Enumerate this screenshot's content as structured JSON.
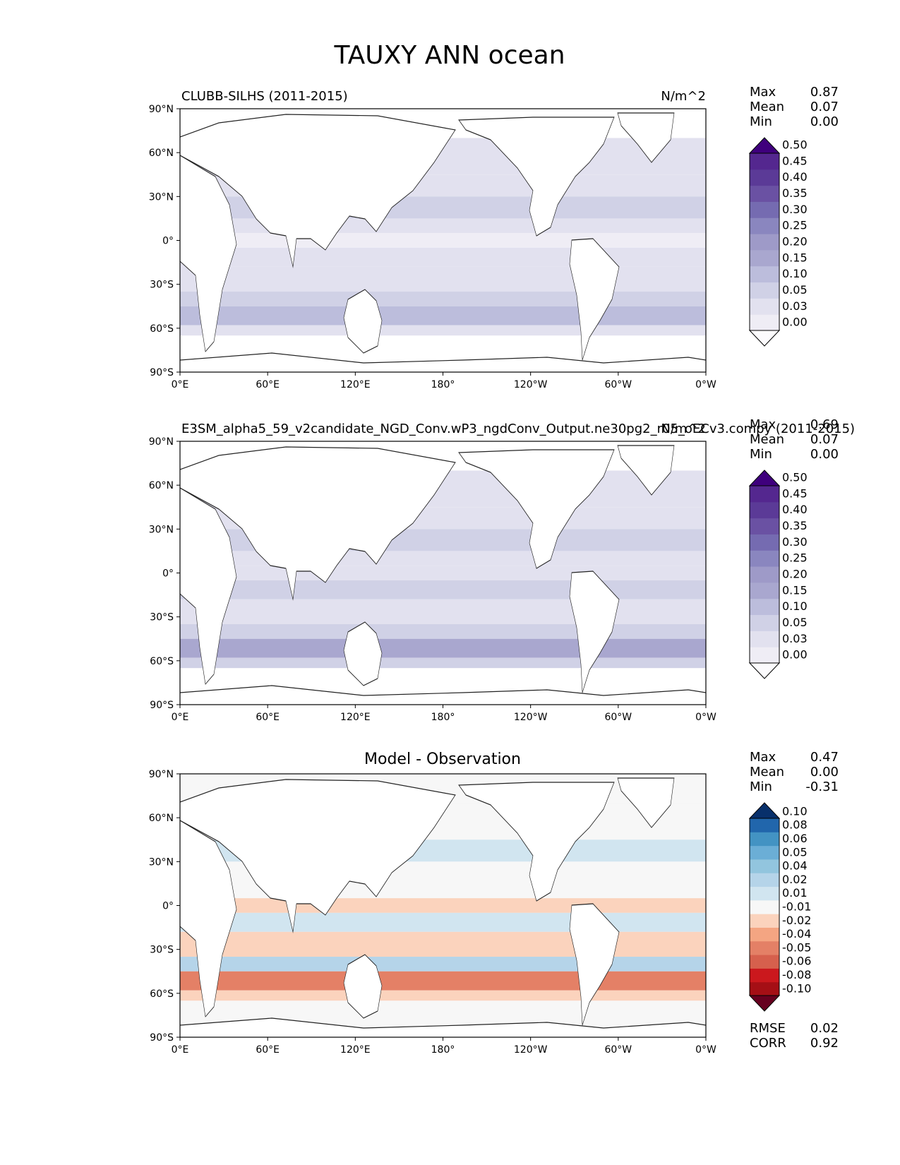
{
  "figure": {
    "title": "TAUXY ANN ocean",
    "units": "N/m^2"
  },
  "axes": {
    "lat_ticks": [
      "90°N",
      "60°N",
      "30°N",
      "0°",
      "30°S",
      "60°S",
      "90°S"
    ],
    "lon_ticks": [
      "0°E",
      "60°E",
      "120°E",
      "180°",
      "120°W",
      "60°W",
      "0°W"
    ],
    "stat_labels": {
      "max": "Max",
      "mean": "Mean",
      "min": "Min",
      "rmse": "RMSE",
      "corr": "CORR"
    }
  },
  "panels": [
    {
      "left_title": "CLUBB-SILHS (2011-2015)",
      "center_title": "",
      "right_title": "N/m^2",
      "stats": {
        "max": "0.87",
        "mean": "0.07",
        "min": "0.00"
      },
      "colorbar": {
        "colors": [
          "#fcfbfd",
          "#efedf5",
          "#e2e1ef",
          "#d0d1e6",
          "#bcbddc",
          "#a9a7cf",
          "#9e9ac8",
          "#8a86bf",
          "#756bb1",
          "#6a51a3",
          "#5b3a97",
          "#54278f",
          "#3f007d"
        ],
        "labels": [
          "0.00",
          "0.03",
          "0.05",
          "0.10",
          "0.15",
          "0.20",
          "0.25",
          "0.30",
          "0.35",
          "0.40",
          "0.45",
          "0.50"
        ]
      }
    },
    {
      "left_title": "E3SM_alpha5_59_v2candidate_NGD_Conv.wP3_ngdConv_Output.ne30pg2_r05_oECv3.compy (2011-2015)",
      "center_title": "",
      "right_title": "N/m^2",
      "stats": {
        "max": "0.69",
        "mean": "0.07",
        "min": "0.00"
      },
      "colorbar": {
        "colors": [
          "#fcfbfd",
          "#efedf5",
          "#e2e1ef",
          "#d0d1e6",
          "#bcbddc",
          "#a9a7cf",
          "#9e9ac8",
          "#8a86bf",
          "#756bb1",
          "#6a51a3",
          "#5b3a97",
          "#54278f",
          "#3f007d"
        ],
        "labels": [
          "0.00",
          "0.03",
          "0.05",
          "0.10",
          "0.15",
          "0.20",
          "0.25",
          "0.30",
          "0.35",
          "0.40",
          "0.45",
          "0.50"
        ]
      }
    },
    {
      "left_title": "",
      "center_title": "Model - Observation",
      "right_title": "",
      "stats": {
        "max": "0.47",
        "mean": "0.00",
        "min": "-0.31"
      },
      "extra_stats": {
        "rmse": "0.02",
        "corr": "0.92"
      },
      "colorbar": {
        "colors": [
          "#67001f",
          "#a50f15",
          "#cb181d",
          "#d6604d",
          "#e48066",
          "#f4a582",
          "#fbd3bd",
          "#f7f7f7",
          "#d1e5f0",
          "#b5d4e9",
          "#92c5de",
          "#6baed6",
          "#4393c3",
          "#2166ac",
          "#08306b"
        ],
        "labels": [
          "-0.10",
          "-0.08",
          "-0.06",
          "-0.05",
          "-0.04",
          "-0.02",
          "-0.01",
          "0.01",
          "0.02",
          "0.04",
          "0.05",
          "0.06",
          "0.08",
          "0.10"
        ]
      }
    }
  ],
  "chart_data": [
    {
      "type": "heatmap",
      "title": "CLUBB-SILHS (2011-2015)",
      "variable": "TAUXY",
      "season": "ANN",
      "region": "ocean",
      "units": "N/m^2",
      "xlabel": "",
      "ylabel": "",
      "xlim": [
        0,
        360
      ],
      "ylim": [
        -90,
        90
      ],
      "stats": {
        "max": 0.87,
        "mean": 0.07,
        "min": 0.0
      },
      "levels": [
        0.0,
        0.03,
        0.05,
        0.1,
        0.15,
        0.2,
        0.25,
        0.3,
        0.35,
        0.4,
        0.45,
        0.5
      ],
      "zonal_bands": [
        {
          "lat": [
            45,
            70
          ],
          "value": 0.07
        },
        {
          "lat": [
            30,
            45
          ],
          "value": 0.08
        },
        {
          "lat": [
            15,
            30
          ],
          "value": 0.11
        },
        {
          "lat": [
            5,
            15
          ],
          "value": 0.06
        },
        {
          "lat": [
            -5,
            5
          ],
          "value": 0.04
        },
        {
          "lat": [
            -18,
            -5
          ],
          "value": 0.09
        },
        {
          "lat": [
            -35,
            -18
          ],
          "value": 0.07
        },
        {
          "lat": [
            -45,
            -35
          ],
          "value": 0.12
        },
        {
          "lat": [
            -58,
            -45
          ],
          "value": 0.19
        },
        {
          "lat": [
            -65,
            -58
          ],
          "value": 0.08
        }
      ]
    },
    {
      "type": "heatmap",
      "title": "E3SM_alpha5_59_v2candidate_NGD_Conv.wP3_ngdConv_Output.ne30pg2_r05_oECv3.compy (2011-2015)",
      "variable": "TAUXY",
      "season": "ANN",
      "region": "ocean",
      "units": "N/m^2",
      "xlabel": "",
      "ylabel": "",
      "xlim": [
        0,
        360
      ],
      "ylim": [
        -90,
        90
      ],
      "stats": {
        "max": 0.69,
        "mean": 0.07,
        "min": 0.0
      },
      "levels": [
        0.0,
        0.03,
        0.05,
        0.1,
        0.15,
        0.2,
        0.25,
        0.3,
        0.35,
        0.4,
        0.45,
        0.5
      ],
      "zonal_bands": [
        {
          "lat": [
            45,
            70
          ],
          "value": 0.07
        },
        {
          "lat": [
            30,
            45
          ],
          "value": 0.08
        },
        {
          "lat": [
            15,
            30
          ],
          "value": 0.1
        },
        {
          "lat": [
            5,
            15
          ],
          "value": 0.07
        },
        {
          "lat": [
            -5,
            5
          ],
          "value": 0.05
        },
        {
          "lat": [
            -18,
            -5
          ],
          "value": 0.1
        },
        {
          "lat": [
            -35,
            -18
          ],
          "value": 0.08
        },
        {
          "lat": [
            -45,
            -35
          ],
          "value": 0.12
        },
        {
          "lat": [
            -58,
            -45
          ],
          "value": 0.21
        },
        {
          "lat": [
            -65,
            -58
          ],
          "value": 0.1
        }
      ]
    },
    {
      "type": "heatmap",
      "title": "Model - Observation",
      "variable": "TAUXY",
      "season": "ANN",
      "region": "ocean",
      "units": "N/m^2",
      "xlabel": "",
      "ylabel": "",
      "xlim": [
        0,
        360
      ],
      "ylim": [
        -90,
        90
      ],
      "stats": {
        "max": 0.47,
        "mean": 0.0,
        "min": -0.31,
        "rmse": 0.02,
        "corr": 0.92
      },
      "levels": [
        -0.1,
        -0.08,
        -0.06,
        -0.05,
        -0.04,
        -0.02,
        -0.01,
        0.01,
        0.02,
        0.04,
        0.05,
        0.06,
        0.08,
        0.1
      ],
      "zonal_bands": [
        {
          "lat": [
            45,
            70
          ],
          "value": 0.0
        },
        {
          "lat": [
            30,
            45
          ],
          "value": 0.015
        },
        {
          "lat": [
            15,
            30
          ],
          "value": -0.005
        },
        {
          "lat": [
            5,
            15
          ],
          "value": 0.0
        },
        {
          "lat": [
            -5,
            5
          ],
          "value": -0.012
        },
        {
          "lat": [
            -18,
            -5
          ],
          "value": 0.015
        },
        {
          "lat": [
            -35,
            -18
          ],
          "value": -0.015
        },
        {
          "lat": [
            -45,
            -35
          ],
          "value": 0.03
        },
        {
          "lat": [
            -58,
            -45
          ],
          "value": -0.05
        },
        {
          "lat": [
            -65,
            -58
          ],
          "value": -0.015
        }
      ]
    }
  ]
}
